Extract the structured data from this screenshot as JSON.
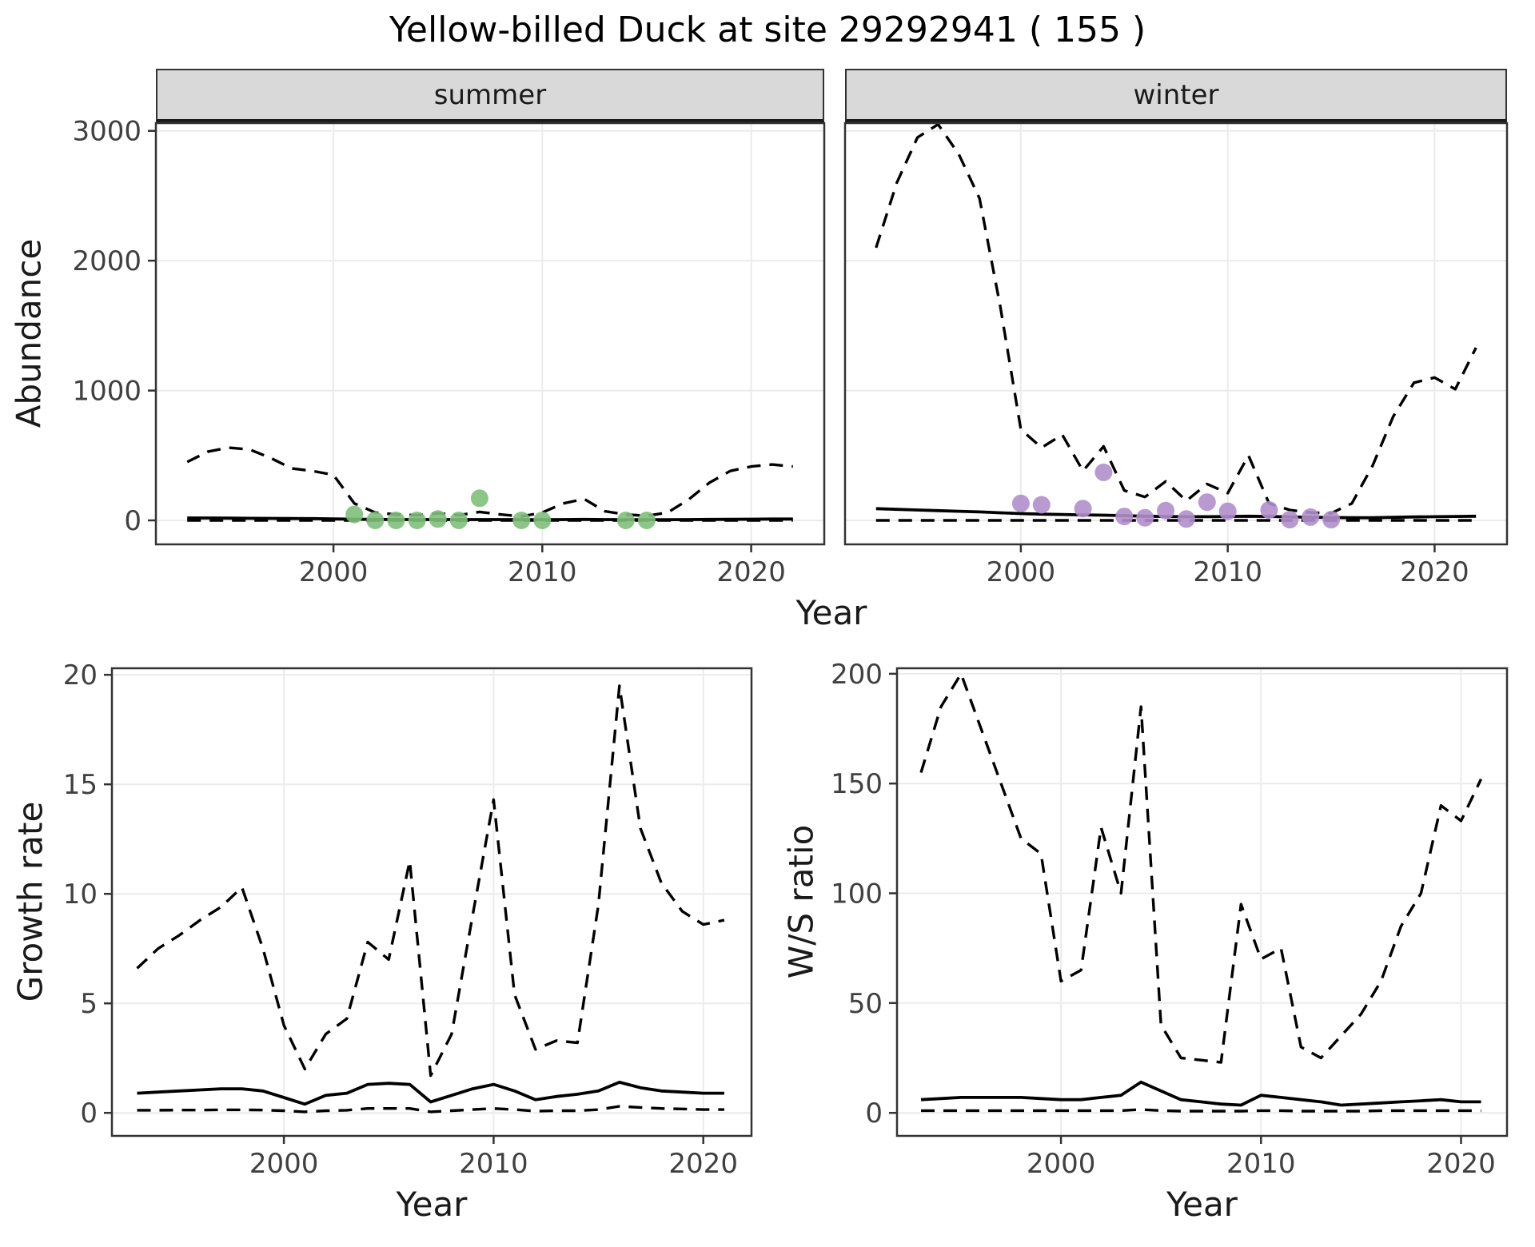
{
  "title": "Yellow-billed Duck at site 29292941 ( 155 )",
  "axes": {
    "x_label": "Year",
    "abundance_label": "Abundance",
    "growth_label": "Growth rate",
    "ws_label": "W/S ratio"
  },
  "facets": [
    {
      "label": "summer"
    },
    {
      "label": "winter"
    }
  ],
  "colors": {
    "points_summer": "#7fbf7b",
    "points_winter": "#b18fcb",
    "line": "#000000",
    "strip_background": "#d9d9d9",
    "grid": "#ebebeb",
    "panel_border": "#333333",
    "tick_text": "#404040"
  },
  "chart_data": [
    {
      "id": "abundance-summer",
      "type": "line",
      "facet": "summer",
      "xlabel": "Year",
      "ylabel": "Abundance",
      "xlim": [
        1991.5,
        2023.5
      ],
      "ylim": [
        -185,
        3060
      ],
      "xticks": [
        2000,
        2010,
        2020
      ],
      "yticks": [
        0,
        1000,
        2000,
        3000
      ],
      "grid": true,
      "legend": "none",
      "x": [
        1993,
        1994,
        1995,
        1996,
        1997,
        1998,
        1999,
        2000,
        2001,
        2002,
        2003,
        2004,
        2005,
        2006,
        2007,
        2008,
        2009,
        2010,
        2011,
        2012,
        2013,
        2014,
        2015,
        2016,
        2017,
        2018,
        2019,
        2020,
        2021,
        2022
      ],
      "series": [
        {
          "name": "upper_ci",
          "style": "dashed",
          "values": [
            450,
            530,
            560,
            545,
            480,
            400,
            380,
            350,
            130,
            60,
            45,
            40,
            55,
            40,
            65,
            45,
            30,
            60,
            130,
            165,
            70,
            45,
            35,
            60,
            160,
            290,
            380,
            415,
            430,
            415
          ]
        },
        {
          "name": "median",
          "style": "solid",
          "values": [
            18,
            18,
            17,
            16,
            15,
            14,
            13,
            11,
            9,
            7,
            6,
            6,
            6,
            6,
            6,
            6,
            5,
            5,
            6,
            7,
            6,
            5,
            5,
            5,
            6,
            7,
            8,
            9,
            10,
            10
          ]
        },
        {
          "name": "lower_ci",
          "style": "dashed",
          "values": [
            0,
            0,
            0,
            0,
            0,
            0,
            0,
            0,
            0,
            0,
            0,
            0,
            0,
            0,
            0,
            0,
            0,
            0,
            0,
            0,
            0,
            0,
            0,
            0,
            0,
            0,
            0,
            0,
            0,
            0
          ]
        }
      ],
      "points": {
        "name": "observed-summer-counts",
        "color": "#7fbf7b",
        "x": [
          2001,
          2002,
          2003,
          2004,
          2005,
          2006,
          2007,
          2009,
          2010,
          2014,
          2015
        ],
        "y": [
          45,
          0,
          0,
          0,
          10,
          0,
          170,
          0,
          0,
          0,
          0
        ]
      }
    },
    {
      "id": "abundance-winter",
      "type": "line",
      "facet": "winter",
      "xlabel": "Year",
      "ylabel": "Abundance",
      "xlim": [
        1991.5,
        2023.5
      ],
      "ylim": [
        -185,
        3060
      ],
      "xticks": [
        2000,
        2010,
        2020
      ],
      "yticks": [
        0,
        1000,
        2000,
        3000
      ],
      "grid": true,
      "legend": "none",
      "x": [
        1993,
        1994,
        1995,
        1996,
        1997,
        1998,
        1999,
        2000,
        2001,
        2002,
        2003,
        2004,
        2005,
        2006,
        2007,
        2008,
        2009,
        2010,
        2011,
        2012,
        2013,
        2014,
        2015,
        2016,
        2017,
        2018,
        2019,
        2020,
        2021,
        2022
      ],
      "series": [
        {
          "name": "upper_ci",
          "style": "dashed",
          "values": [
            2100,
            2600,
            2950,
            3050,
            2820,
            2480,
            1650,
            700,
            560,
            660,
            380,
            570,
            230,
            180,
            300,
            150,
            280,
            210,
            500,
            130,
            80,
            60,
            55,
            130,
            420,
            800,
            1060,
            1100,
            1010,
            1330
          ]
        },
        {
          "name": "median",
          "style": "solid",
          "values": [
            90,
            85,
            80,
            75,
            70,
            65,
            58,
            52,
            48,
            45,
            42,
            40,
            36,
            32,
            30,
            28,
            28,
            30,
            32,
            30,
            27,
            24,
            22,
            20,
            20,
            23,
            26,
            28,
            30,
            32
          ]
        },
        {
          "name": "lower_ci",
          "style": "dashed",
          "values": [
            0,
            0,
            0,
            0,
            0,
            0,
            0,
            0,
            0,
            0,
            0,
            0,
            0,
            0,
            0,
            0,
            0,
            0,
            0,
            0,
            0,
            0,
            0,
            0,
            0,
            0,
            0,
            0,
            0,
            0
          ]
        }
      ],
      "points": {
        "name": "observed-winter-counts",
        "color": "#b18fcb",
        "x": [
          2000,
          2001,
          2003,
          2004,
          2005,
          2006,
          2007,
          2008,
          2009,
          2010,
          2012,
          2013,
          2014,
          2015
        ],
        "y": [
          130,
          120,
          90,
          370,
          30,
          20,
          75,
          10,
          140,
          70,
          80,
          5,
          25,
          5
        ]
      }
    },
    {
      "id": "growth-rate",
      "type": "line",
      "xlabel": "Year",
      "ylabel": "Growth rate",
      "xlim": [
        1991.8,
        2022.3
      ],
      "ylim": [
        -1.05,
        20.3
      ],
      "xticks": [
        2000,
        2010,
        2020
      ],
      "yticks": [
        0,
        5,
        10,
        15,
        20
      ],
      "grid": true,
      "legend": "none",
      "x": [
        1993,
        1994,
        1995,
        1996,
        1997,
        1998,
        1999,
        2000,
        2001,
        2002,
        2003,
        2004,
        2005,
        2006,
        2007,
        2008,
        2009,
        2010,
        2011,
        2012,
        2013,
        2014,
        2015,
        2016,
        2017,
        2018,
        2019,
        2020,
        2021
      ],
      "series": [
        {
          "name": "upper_ci",
          "style": "dashed",
          "values": [
            6.6,
            7.5,
            8.1,
            8.8,
            9.4,
            10.3,
            7.5,
            4.0,
            2.0,
            3.6,
            4.3,
            7.8,
            7.0,
            11.5,
            1.7,
            3.6,
            9.0,
            14.3,
            5.4,
            2.9,
            3.3,
            3.2,
            9.5,
            19.5,
            13.0,
            10.5,
            9.2,
            8.6,
            8.8
          ]
        },
        {
          "name": "median",
          "style": "solid",
          "values": [
            0.9,
            0.95,
            1.0,
            1.05,
            1.1,
            1.1,
            1.0,
            0.7,
            0.4,
            0.8,
            0.9,
            1.3,
            1.35,
            1.3,
            0.5,
            0.8,
            1.1,
            1.3,
            1.0,
            0.6,
            0.75,
            0.85,
            1.0,
            1.4,
            1.15,
            1.0,
            0.95,
            0.9,
            0.9
          ]
        },
        {
          "name": "lower_ci",
          "style": "dashed",
          "values": [
            0.12,
            0.12,
            0.13,
            0.13,
            0.14,
            0.14,
            0.13,
            0.1,
            0.05,
            0.1,
            0.12,
            0.2,
            0.2,
            0.2,
            0.05,
            0.1,
            0.15,
            0.2,
            0.15,
            0.08,
            0.1,
            0.1,
            0.15,
            0.3,
            0.25,
            0.2,
            0.18,
            0.15,
            0.15
          ]
        }
      ]
    },
    {
      "id": "ws-ratio",
      "type": "line",
      "xlabel": "Year",
      "ylabel": "W/S ratio",
      "xlim": [
        1991.8,
        2022.3
      ],
      "ylim": [
        -10.5,
        202.5
      ],
      "xticks": [
        2000,
        2010,
        2020
      ],
      "yticks": [
        0,
        50,
        100,
        150,
        200
      ],
      "grid": true,
      "legend": "none",
      "x": [
        1993,
        1994,
        1995,
        1996,
        1997,
        1998,
        1999,
        2000,
        2001,
        2002,
        2003,
        2004,
        2005,
        2006,
        2007,
        2008,
        2009,
        2010,
        2011,
        2012,
        2013,
        2014,
        2015,
        2016,
        2017,
        2018,
        2019,
        2020,
        2021
      ],
      "series": [
        {
          "name": "upper_ci",
          "style": "dashed",
          "values": [
            155,
            185,
            200,
            175,
            150,
            125,
            118,
            60,
            65,
            130,
            100,
            185,
            40,
            25,
            24,
            23,
            95,
            70,
            75,
            30,
            25,
            35,
            45,
            60,
            85,
            100,
            140,
            133,
            152
          ]
        },
        {
          "name": "median",
          "style": "solid",
          "values": [
            6,
            6.5,
            7,
            7,
            7,
            7,
            6.5,
            6,
            6,
            7,
            8,
            14,
            10,
            6,
            5,
            4,
            3.5,
            8,
            7,
            6,
            5,
            3.5,
            4,
            4.5,
            5,
            5.5,
            6,
            5,
            5
          ]
        },
        {
          "name": "lower_ci",
          "style": "dashed",
          "values": [
            1,
            1,
            1,
            1,
            1,
            1,
            1,
            1,
            1,
            1,
            1,
            1.5,
            1,
            0.8,
            0.8,
            0.8,
            0.8,
            1,
            1,
            0.8,
            0.8,
            0.8,
            0.8,
            1,
            1,
            1,
            1,
            1,
            1
          ]
        }
      ]
    }
  ]
}
